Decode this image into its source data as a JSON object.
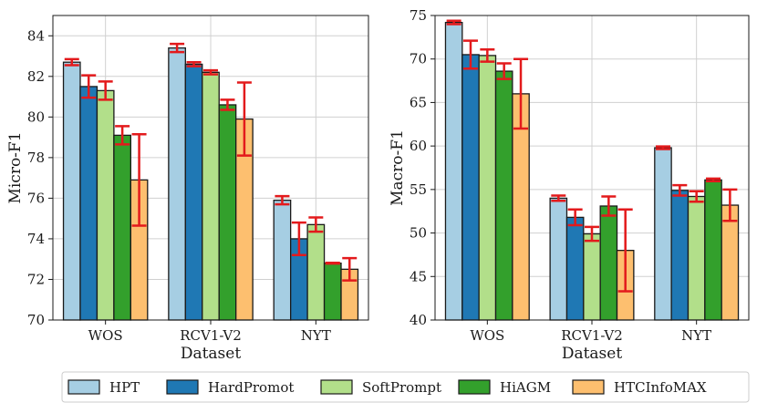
{
  "legend": {
    "placement": "bottom-center",
    "items": [
      {
        "label": "HPT",
        "color": "#a6cee3"
      },
      {
        "label": "HardPromot",
        "color": "#1f78b4"
      },
      {
        "label": "SoftPrompt",
        "color": "#b2df8a"
      },
      {
        "label": "HiAGM",
        "color": "#33a02c"
      },
      {
        "label": "HTCInfoMAX",
        "color": "#fdbf6f"
      }
    ]
  },
  "error_bar_color": "#e31a1c",
  "chart_data": [
    {
      "type": "bar",
      "xlabel": "Dataset",
      "ylabel": "Micro-F1",
      "categories": [
        "WOS",
        "RCV1-V2",
        "NYT"
      ],
      "ylim": [
        70,
        85
      ],
      "yticks": [
        70,
        72,
        74,
        76,
        78,
        80,
        82,
        84
      ],
      "grid": true,
      "series": [
        {
          "name": "HPT",
          "values": [
            82.7,
            83.4,
            75.9
          ],
          "errors": [
            0.15,
            0.2,
            0.2
          ]
        },
        {
          "name": "HardPromot",
          "values": [
            81.5,
            82.6,
            74.0
          ],
          "errors": [
            0.55,
            0.1,
            0.8
          ]
        },
        {
          "name": "SoftPrompt",
          "values": [
            81.3,
            82.2,
            74.7
          ],
          "errors": [
            0.45,
            0.1,
            0.35
          ]
        },
        {
          "name": "HiAGM",
          "values": [
            79.1,
            80.6,
            72.8
          ],
          "errors": [
            0.45,
            0.25,
            0.02
          ]
        },
        {
          "name": "HTCInfoMAX",
          "values": [
            76.9,
            79.9,
            72.5
          ],
          "errors": [
            2.25,
            1.8,
            0.55
          ]
        }
      ]
    },
    {
      "type": "bar",
      "xlabel": "Dataset",
      "ylabel": "Macro-F1",
      "categories": [
        "WOS",
        "RCV1-V2",
        "NYT"
      ],
      "ylim": [
        40,
        75
      ],
      "yticks": [
        40,
        45,
        50,
        55,
        60,
        65,
        70,
        75
      ],
      "grid": true,
      "series": [
        {
          "name": "HPT",
          "values": [
            74.2,
            54.0,
            59.8
          ],
          "errors": [
            0.2,
            0.3,
            0.15
          ]
        },
        {
          "name": "HardPromot",
          "values": [
            70.5,
            51.8,
            54.9
          ],
          "errors": [
            1.6,
            0.9,
            0.6
          ]
        },
        {
          "name": "SoftPrompt",
          "values": [
            70.4,
            49.9,
            54.2
          ],
          "errors": [
            0.7,
            0.8,
            0.6
          ]
        },
        {
          "name": "HiAGM",
          "values": [
            68.6,
            53.1,
            56.1
          ],
          "errors": [
            0.9,
            1.1,
            0.15
          ]
        },
        {
          "name": "HTCInfoMAX",
          "values": [
            66.0,
            48.0,
            53.2
          ],
          "errors": [
            4.0,
            4.7,
            1.8
          ]
        }
      ]
    }
  ]
}
